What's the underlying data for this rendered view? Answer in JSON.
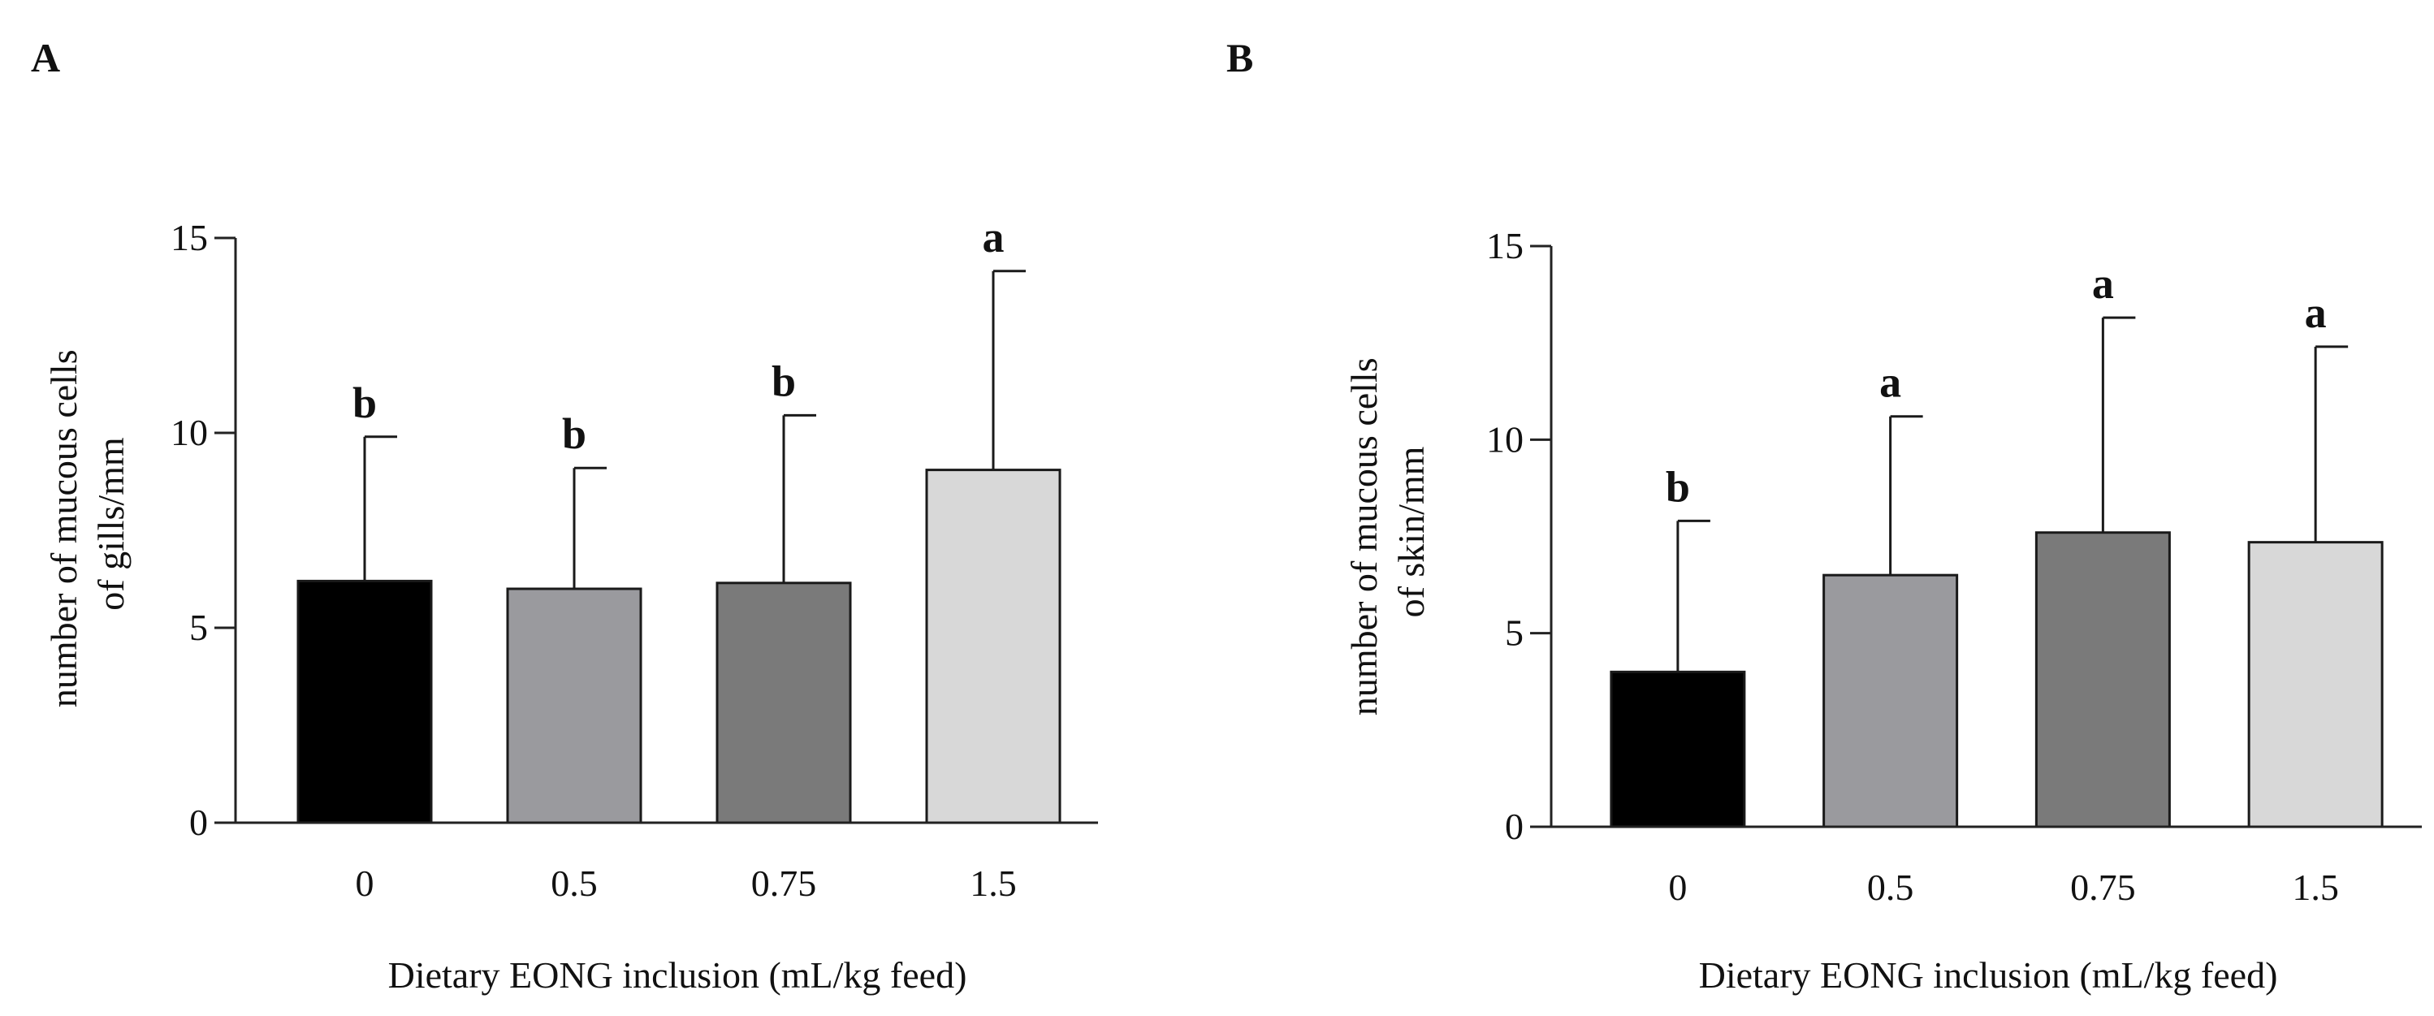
{
  "figure": {
    "colors": {
      "axis": "#222222",
      "bar_stroke": "#1a1a1a",
      "errorbar": "#1a1a1a"
    }
  },
  "chart_data": [
    {
      "id": "A",
      "type": "bar",
      "panel_label": "A",
      "title": "",
      "categories": [
        "0",
        "0.5",
        "0.75",
        "1.5"
      ],
      "values": [
        6.2,
        6.0,
        6.15,
        9.05
      ],
      "errors": [
        3.7,
        3.1,
        4.3,
        5.1
      ],
      "significance": [
        "b",
        "b",
        "b",
        "a"
      ],
      "bar_colors": [
        "#000000",
        "#9a9a9e",
        "#7a7a7a",
        "#d8d8d8"
      ],
      "xlabel": "Dietary EONG inclusion (mL/kg feed)",
      "ylabel_lines": [
        "number of mucous cells",
        "of gills/mm"
      ],
      "ylim": [
        0,
        15
      ],
      "yticks": [
        0,
        5,
        10,
        15
      ],
      "ytick_labels": [
        "0",
        "5",
        "10",
        "15"
      ],
      "grid": false,
      "legend": "none"
    },
    {
      "id": "B",
      "type": "bar",
      "panel_label": "B",
      "title": "",
      "categories": [
        "0",
        "0.5",
        "0.75",
        "1.5"
      ],
      "values": [
        4.0,
        6.5,
        7.6,
        7.35
      ],
      "errors": [
        3.9,
        4.1,
        5.55,
        5.05
      ],
      "significance": [
        "b",
        "a",
        "a",
        "a"
      ],
      "bar_colors": [
        "#000000",
        "#9a9a9e",
        "#7a7a7a",
        "#d8d8d8"
      ],
      "xlabel": "Dietary EONG inclusion (mL/kg feed)",
      "ylabel_lines": [
        "number of mucous cells",
        "of skin/mm"
      ],
      "ylim": [
        0,
        15
      ],
      "yticks": [
        0,
        5,
        10,
        15
      ],
      "ytick_labels": [
        "0",
        "5",
        "10",
        "15"
      ],
      "grid": false,
      "legend": "none"
    }
  ]
}
